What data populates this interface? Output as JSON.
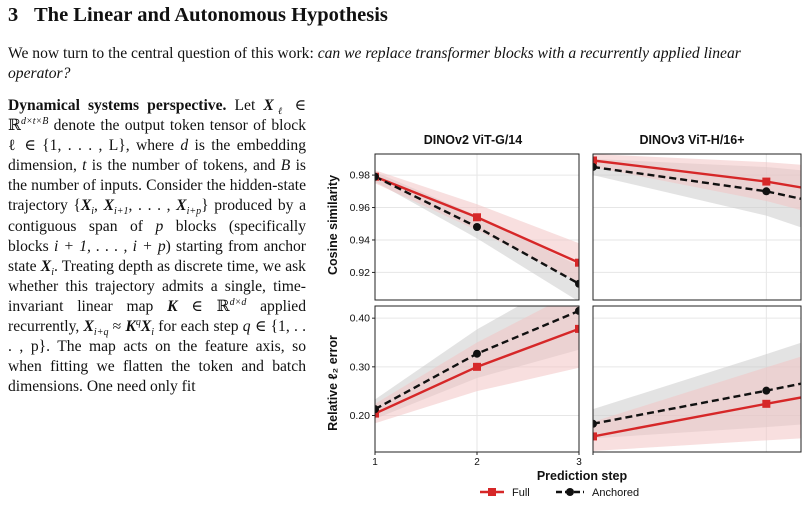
{
  "section": {
    "number": "3",
    "title": "The Linear and Autonomous Hypothesis"
  },
  "intro": {
    "text": "We now turn to the central question of this work: ",
    "question": "can we replace transformer blocks with a recurrently applied linear operator?"
  },
  "paragraph": {
    "lead": "Dynamical systems perspective.",
    "t1": "Let ",
    "Xl": "X",
    "l_sub": "ℓ",
    "t2": " ∈ ℝ",
    "dim1": "d×t×B",
    "t3": " denote the output token tensor of block ℓ ∈ {1, . . . , L}, where ",
    "d": "d",
    "t4": " is the embedding dimension, ",
    "t": "t",
    "t5": " is the number of tokens, and ",
    "B": "B",
    "t6": " is the number of inputs. Consider the hidden-state trajectory {",
    "Xi": "X",
    "i_sub": "i",
    "t7": ", ",
    "Xi1": "X",
    "i1_sub": "i+1",
    "t8": ", . . . , ",
    "Xip": "X",
    "ip_sub": "i+p",
    "t9": "} produced by a contiguous span of ",
    "p": "p",
    "t10": " blocks (specifically blocks ",
    "range": "i + 1, . . . , i + p",
    "t11": ") starting from anchor state ",
    "Xi2": "X",
    "i2_sub": "i",
    "t12": ". Treating depth as discrete time, we ask whether this trajectory admits a single, time-invariant linear map ",
    "K": "K",
    "t13": " ∈ ℝ",
    "dim2": "d×d",
    "t14": " applied recurrently, ",
    "Xiq": "X",
    "iq_sub": "i+q",
    "t15": " ≈ ",
    "Kq": "K",
    "q_sup": "q",
    "Xi3": "X",
    "i3_sub": "i",
    "t16": " for each step ",
    "q": "q",
    "t17": " ∈ {1, . . . , p}. The map acts on the feature axis, so when fitting we flatten the token and batch dimensions. One need only fit"
  },
  "figure": {
    "colors": {
      "full": "#d62728",
      "anchored": "#111111",
      "full_band": "#f2c4c4",
      "anchored_band": "#cccccc"
    },
    "column_titles": [
      "DINOv2 ViT-G/14",
      "DINOv3 ViT-H/16+"
    ],
    "row_labels": [
      "Cosine similarity",
      "Relative ℓ₂ error"
    ],
    "xlabel": "Prediction step",
    "legend": [
      "Full",
      "Anchored"
    ],
    "x_ticks": [
      "1",
      "2",
      "3"
    ],
    "cos_ticks": [
      "0.98",
      "0.96",
      "0.94",
      "0.92"
    ],
    "err_ticks": [
      "0.40",
      "0.30",
      "0.20"
    ]
  },
  "chart_data": [
    {
      "type": "line",
      "title": "DINOv2 ViT-G/14",
      "ylabel": "Cosine similarity",
      "x": [
        1,
        2,
        3
      ],
      "ylim": [
        0.903,
        0.993
      ],
      "series": [
        {
          "name": "Full",
          "values": [
            0.979,
            0.954,
            0.926
          ]
        },
        {
          "name": "Anchored",
          "values": [
            0.979,
            0.948,
            0.913
          ]
        }
      ]
    },
    {
      "type": "line",
      "title": "DINOv3 ViT-H/16+",
      "ylabel": "Cosine similarity",
      "x": [
        1,
        2,
        3
      ],
      "ylim": [
        0.903,
        0.993
      ],
      "series": [
        {
          "name": "Full",
          "values": [
            0.989,
            0.976,
            0.958
          ]
        },
        {
          "name": "Anchored",
          "values": [
            0.985,
            0.97,
            0.947
          ]
        }
      ]
    },
    {
      "type": "line",
      "title": "DINOv2 ViT-G/14",
      "ylabel": "Relative ℓ₂ error",
      "xlabel": "Prediction step",
      "x": [
        1,
        2,
        3
      ],
      "ylim": [
        0.125,
        0.425
      ],
      "series": [
        {
          "name": "Full",
          "values": [
            0.204,
            0.3,
            0.378
          ]
        },
        {
          "name": "Anchored",
          "values": [
            0.213,
            0.327,
            0.415
          ]
        }
      ]
    },
    {
      "type": "line",
      "title": "DINOv3 ViT-H/16+",
      "ylabel": "Relative ℓ₂ error",
      "xlabel": "Prediction step",
      "x": [
        1,
        2,
        3
      ],
      "ylim": [
        0.125,
        0.425
      ],
      "series": [
        {
          "name": "Full",
          "values": [
            0.157,
            0.224,
            0.289
          ]
        },
        {
          "name": "Anchored",
          "values": [
            0.183,
            0.251,
            0.323
          ]
        }
      ]
    }
  ]
}
